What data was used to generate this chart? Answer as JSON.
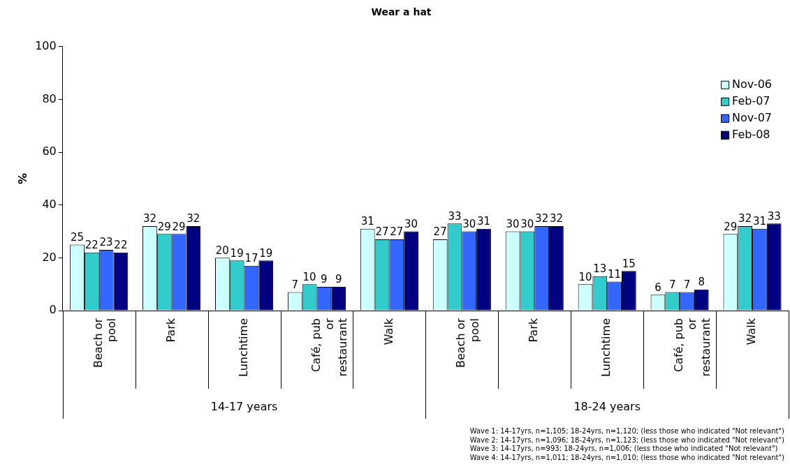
{
  "chart_data": {
    "type": "bar",
    "title": "Wear a hat",
    "ylabel": "%",
    "categories": [
      "Beach or pool",
      "Park",
      "Lunchtime",
      "Café, pub or restaurant",
      "Walk",
      "Beach or pool",
      "Park",
      "Lunchtime",
      "Café, pub or restaurant",
      "Walk"
    ],
    "series": [
      {
        "name": "Nov-06",
        "color": "#ccffff",
        "values": [
          25,
          32,
          20,
          7,
          31,
          27,
          30,
          10,
          6,
          29
        ]
      },
      {
        "name": "Feb-07",
        "color": "#33cccc",
        "values": [
          22,
          29,
          19,
          10,
          27,
          33,
          30,
          13,
          7,
          32
        ]
      },
      {
        "name": "Nov-07",
        "color": "#3366ff",
        "values": [
          23,
          29,
          17,
          9,
          27,
          30,
          32,
          11,
          7,
          31
        ]
      },
      {
        "name": "Feb-08",
        "color": "#000080",
        "values": [
          22,
          32,
          19,
          9,
          30,
          31,
          32,
          15,
          8,
          33
        ]
      }
    ],
    "ylim": [
      0,
      100
    ],
    "yticks": [
      0,
      20,
      40,
      60,
      80,
      100
    ],
    "data_labels": true,
    "legend": "top right",
    "annotations": [
      "14-17 years",
      "18-24 years",
      "Wave 1: 14-17yrs, n=1,105; 18-24yrs, n=1,120; (less those who indicated \"Not relevant\")",
      "Wave 2: 14-17yrs, n=1,096; 18-24yrs, n=1,123; (less those who indicated \"Not relevant\")",
      "Wave 3: 14-17yrs, n=993; 18-24yrs, n=1,006; (less those who indicated \"Not relevant\")",
      "Wave 4: 14-17yrs, n=1,011; 18-24yrs, n=1,010; (less those who indicated \"Not relevant\")"
    ]
  }
}
